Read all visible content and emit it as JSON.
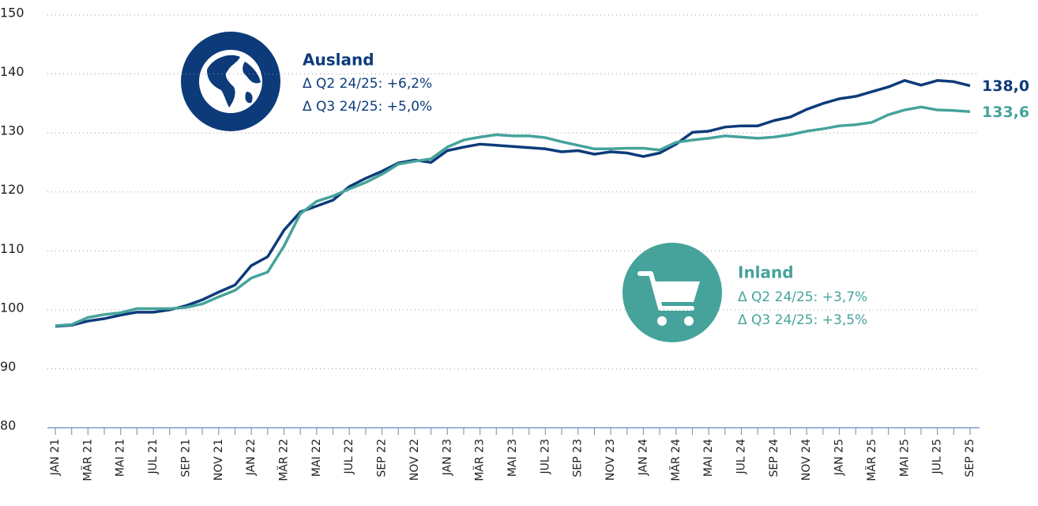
{
  "chart_data": {
    "type": "line",
    "categories": [
      "JAN 21",
      null,
      "MÄR 21",
      null,
      "MAI 21",
      null,
      "JUL 21",
      null,
      "SEP 21",
      null,
      "NOV 21",
      null,
      "JAN 22",
      null,
      "MÄR 22",
      null,
      "MAI 22",
      null,
      "JUL 22",
      null,
      "SEP 22",
      null,
      "NOV 22",
      null,
      "JAN 23",
      null,
      "MÄR 23",
      null,
      "MAI 23",
      null,
      "JUL 23",
      null,
      "SEP 23",
      null,
      "NOV 23",
      null,
      "JAN 24",
      null,
      "MÄR 24",
      null,
      "MAI 24",
      null,
      "JUL 24",
      null,
      "SEP 24",
      null,
      "NOV 24",
      null,
      "JAN 25",
      null,
      "MÄR 25",
      null,
      "MAI 25",
      null,
      "JUL 25",
      null,
      "SEP 25"
    ],
    "series": [
      {
        "name": "Ausland",
        "color": "#0d3b7a",
        "values": [
          97.2,
          97.4,
          98.1,
          98.5,
          99.1,
          99.6,
          99.6,
          100.0,
          100.7,
          101.7,
          103.0,
          104.2,
          107.5,
          109.0,
          113.5,
          116.6,
          117.6,
          118.6,
          120.9,
          122.3,
          123.5,
          124.9,
          125.4,
          125.0,
          127.0,
          127.6,
          128.1,
          127.9,
          127.7,
          127.5,
          127.3,
          126.8,
          127.0,
          126.4,
          126.8,
          126.6,
          126.0,
          126.6,
          128.1,
          130.1,
          130.3,
          131.0,
          131.2,
          131.2,
          132.1,
          132.7,
          134.0,
          135.0,
          135.8,
          136.2,
          137.0,
          137.8,
          138.9,
          138.1,
          138.9,
          138.7,
          138.0
        ],
        "value_labels": [
          null,
          null,
          null,
          null,
          null,
          null,
          null,
          null,
          null,
          null,
          null,
          null,
          null,
          null,
          null,
          null,
          null,
          null,
          null,
          null,
          null,
          null,
          null,
          null,
          null,
          null,
          null,
          null,
          null,
          null,
          null,
          null,
          null,
          null,
          null,
          null,
          null,
          null,
          null,
          null,
          null,
          null,
          null,
          null,
          null,
          null,
          null,
          null,
          null,
          null,
          null,
          null,
          null,
          null,
          null,
          null,
          "138,0"
        ],
        "annotation": [
          "Δ Q2 24/25: +6,2%",
          "Δ Q3 24/25: +5,0%"
        ]
      },
      {
        "name": "Inland",
        "color": "#45a39b",
        "values": [
          97.3,
          97.5,
          98.7,
          99.2,
          99.5,
          100.2,
          100.2,
          100.2,
          100.4,
          101.0,
          102.2,
          103.3,
          105.4,
          106.4,
          110.8,
          116.3,
          118.4,
          119.3,
          120.5,
          121.6,
          123.0,
          124.7,
          125.2,
          125.6,
          127.6,
          128.8,
          129.3,
          129.7,
          129.5,
          129.5,
          129.2,
          128.5,
          127.9,
          127.3,
          127.3,
          127.4,
          127.4,
          127.1,
          128.4,
          128.8,
          129.1,
          129.5,
          129.3,
          129.1,
          129.3,
          129.7,
          130.3,
          130.7,
          131.2,
          131.4,
          131.8,
          133.1,
          133.9,
          134.4,
          133.9,
          133.8,
          133.6
        ],
        "value_labels": [
          null,
          null,
          null,
          null,
          null,
          null,
          null,
          null,
          null,
          null,
          null,
          null,
          null,
          null,
          null,
          null,
          null,
          null,
          null,
          null,
          null,
          null,
          null,
          null,
          null,
          null,
          null,
          null,
          null,
          null,
          null,
          null,
          null,
          null,
          null,
          null,
          null,
          null,
          null,
          null,
          null,
          null,
          null,
          null,
          null,
          null,
          null,
          null,
          null,
          null,
          null,
          null,
          null,
          null,
          null,
          null,
          "133,6"
        ],
        "annotation": [
          "Δ Q2 24/25: +3,7%",
          "Δ Q3 24/25: +3,5%"
        ]
      }
    ],
    "ylim": [
      80,
      150
    ],
    "yticks": [
      80,
      90,
      100,
      110,
      120,
      130,
      140,
      150
    ],
    "grid": true
  }
}
